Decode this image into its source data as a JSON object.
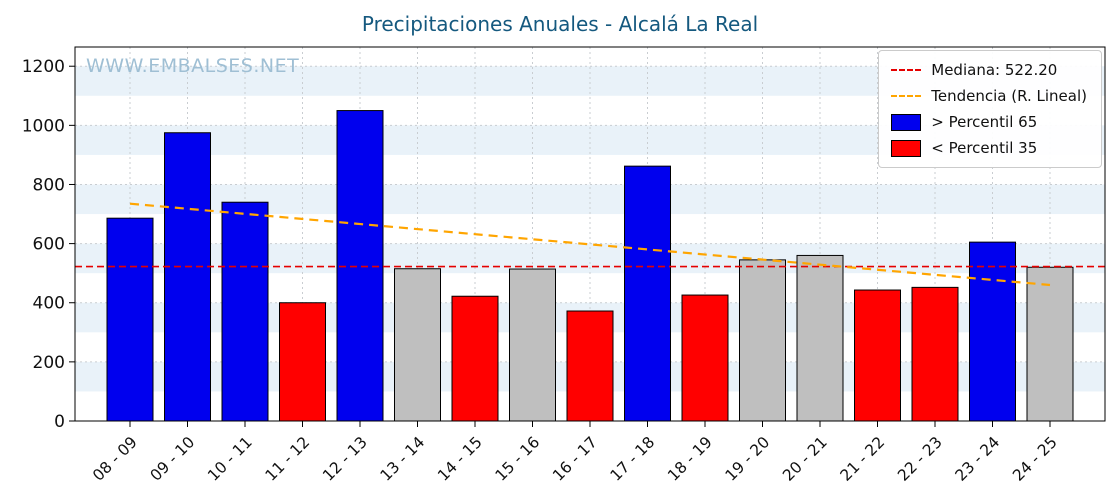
{
  "watermark": "WWW.EMBALSES.NET",
  "colors": {
    "title": "#15597f",
    "watermark": "#9fbfd4",
    "stripe": "#e9f2f9",
    "grid": "#c9cdd1",
    "axis": "#000000",
    "bar_above": "#0000ee",
    "bar_below": "#ff0000",
    "bar_mid": "#bfbfbf",
    "bar_edge": "#000000",
    "median_line": "#e50000",
    "trend_line": "#ffa500"
  },
  "chart_data": {
    "type": "bar",
    "title": "Precipitaciones Anuales - Alcalá La Real",
    "xlabel": "",
    "ylabel": "",
    "ylim": [
      0,
      1265
    ],
    "yticks": [
      0,
      200,
      400,
      600,
      800,
      1000,
      1200
    ],
    "grid": true,
    "legend_position": "top-right",
    "categories": [
      "08 - 09",
      "09 - 10",
      "10 - 11",
      "11 - 12",
      "12 - 13",
      "13 - 14",
      "14 - 15",
      "15 - 16",
      "16 - 17",
      "17 - 18",
      "18 - 19",
      "19 - 20",
      "20 - 21",
      "21 - 22",
      "22 - 23",
      "23 - 24",
      "24 - 25"
    ],
    "values": [
      686,
      975,
      740,
      400,
      1050,
      515,
      422,
      514,
      372,
      862,
      426,
      545,
      560,
      443,
      452,
      605,
      520
    ],
    "classes": [
      "above",
      "above",
      "above",
      "below",
      "above",
      "mid",
      "below",
      "mid",
      "below",
      "above",
      "below",
      "mid",
      "mid",
      "below",
      "below",
      "above",
      "mid"
    ],
    "median": {
      "value": 522.2,
      "label": "Mediana: 522.20"
    },
    "trend": {
      "label": "Tendencia (R. Lineal)",
      "start": 735,
      "end": 460
    },
    "legend": [
      {
        "symbol": "dashed-line",
        "color_key": "median_line",
        "label": "Mediana: 522.20"
      },
      {
        "symbol": "dashed-line",
        "color_key": "trend_line",
        "label": "Tendencia (R. Lineal)"
      },
      {
        "symbol": "patch",
        "color_key": "bar_above",
        "label": "> Percentil 65"
      },
      {
        "symbol": "patch",
        "color_key": "bar_below",
        "label": "< Percentil 35"
      }
    ]
  }
}
